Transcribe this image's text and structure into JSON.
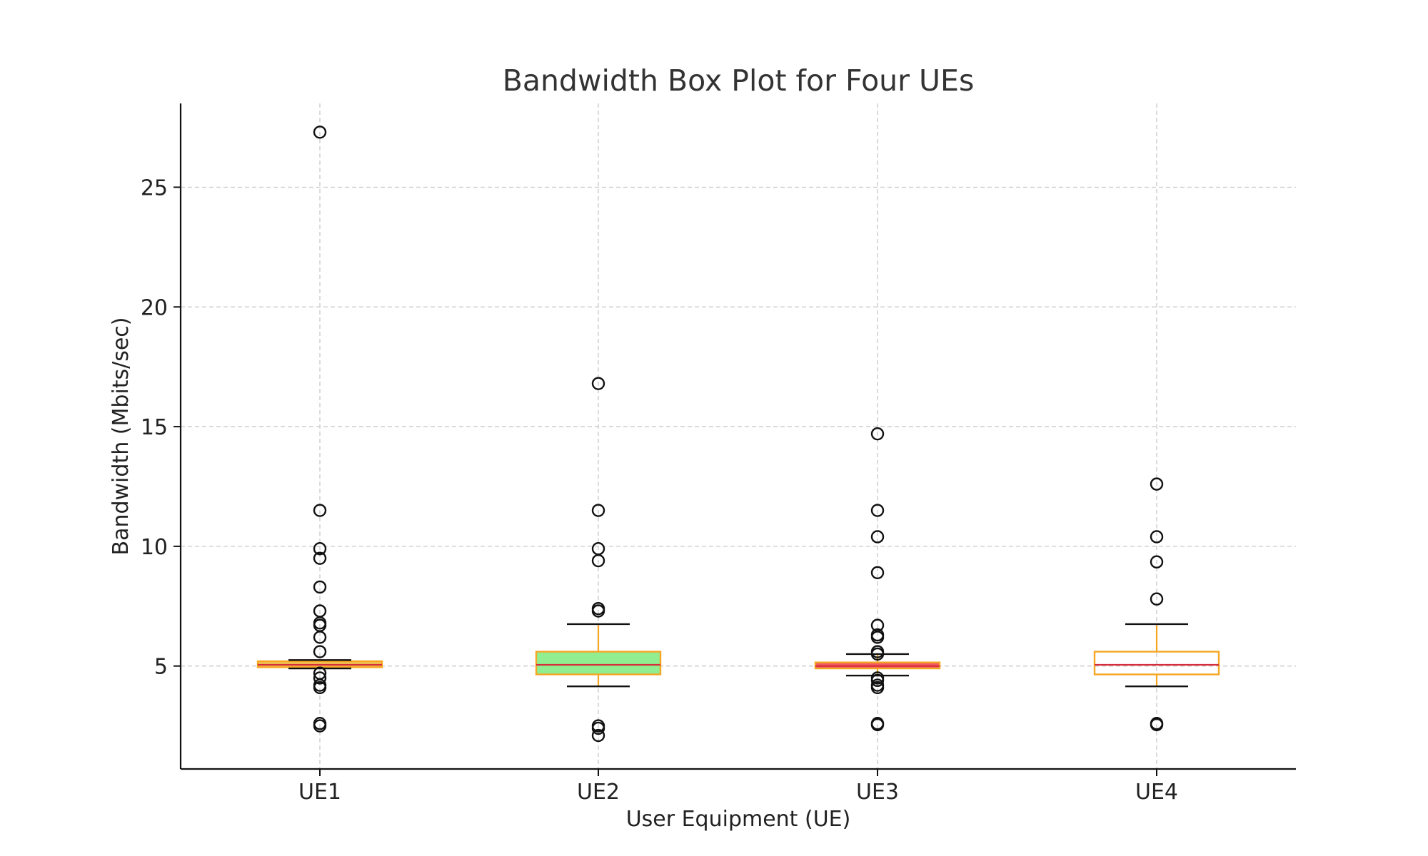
{
  "chart_data": {
    "type": "box",
    "title": "Bandwidth Box Plot for Four UEs",
    "xlabel": "User Equipment (UE)",
    "ylabel": "Bandwidth (Mbits/sec)",
    "categories": [
      "UE1",
      "UE2",
      "UE3",
      "UE4"
    ],
    "ylim": [
      0.7,
      28.5
    ],
    "yticks": [
      5,
      10,
      15,
      20,
      25
    ],
    "grid": true,
    "boxes": [
      {
        "name": "UE1",
        "whisker_low": 4.9,
        "q1": 4.95,
        "median": 5.05,
        "q3": 5.2,
        "whisker_high": 5.25,
        "outliers": [
          27.3,
          11.5,
          9.9,
          9.5,
          8.3,
          7.3,
          6.8,
          6.7,
          6.2,
          5.6,
          4.7,
          4.5,
          4.2,
          4.1,
          2.6,
          2.5
        ],
        "fill": "#f2c24f"
      },
      {
        "name": "UE2",
        "whisker_low": 4.15,
        "q1": 4.65,
        "median": 5.05,
        "q3": 5.6,
        "whisker_high": 6.75,
        "outliers": [
          16.8,
          11.5,
          9.9,
          9.4,
          7.4,
          7.3,
          2.5,
          2.4,
          2.1
        ],
        "fill": "#90ee90"
      },
      {
        "name": "UE3",
        "whisker_low": 4.6,
        "q1": 4.9,
        "median": 5.0,
        "q3": 5.15,
        "whisker_high": 5.5,
        "outliers": [
          14.7,
          11.5,
          10.4,
          8.9,
          6.7,
          6.3,
          6.2,
          5.6,
          5.5,
          4.5,
          4.4,
          4.2,
          4.1,
          2.6,
          2.55
        ],
        "fill": "#f05a62"
      },
      {
        "name": "UE4",
        "whisker_low": 4.15,
        "q1": 4.65,
        "median": 5.05,
        "q3": 5.6,
        "whisker_high": 6.75,
        "outliers": [
          12.6,
          10.4,
          9.35,
          7.8,
          2.6,
          2.55
        ],
        "fill": "none"
      }
    ],
    "colors": {
      "box_edge": "#f5a623",
      "whisker": "#f5a623",
      "median": "#d62d3a",
      "caps": "#111111",
      "outlier": "#111111",
      "grid": "#c8c8c8",
      "axis": "#111111"
    }
  }
}
